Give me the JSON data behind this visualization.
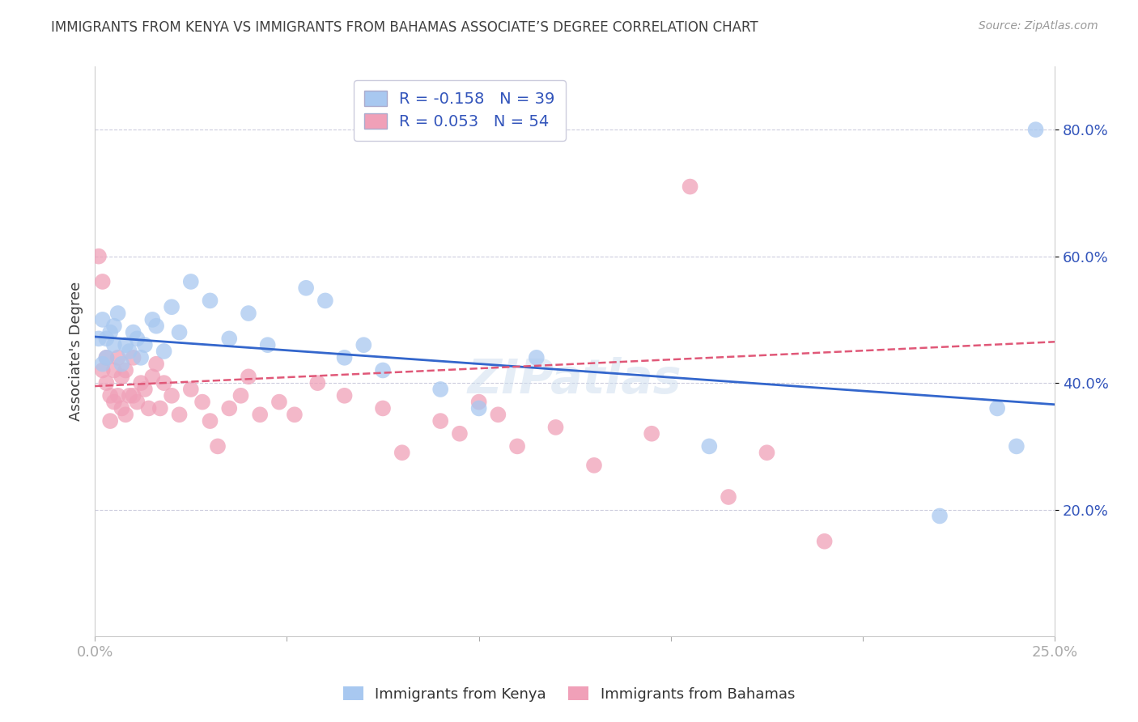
{
  "title": "IMMIGRANTS FROM KENYA VS IMMIGRANTS FROM BAHAMAS ASSOCIATE’S DEGREE CORRELATION CHART",
  "source": "Source: ZipAtlas.com",
  "ylabel": "Associate's Degree",
  "xlim": [
    0.0,
    0.25
  ],
  "ylim": [
    0.0,
    0.9
  ],
  "xticks": [
    0.0,
    0.05,
    0.1,
    0.15,
    0.2,
    0.25
  ],
  "xticklabels": [
    "0.0%",
    "",
    "",
    "",
    "",
    "25.0%"
  ],
  "yticks_right": [
    0.2,
    0.4,
    0.6,
    0.8
  ],
  "ytick_labels_right": [
    "20.0%",
    "40.0%",
    "60.0%",
    "80.0%"
  ],
  "kenya_R": -0.158,
  "kenya_N": 39,
  "bahamas_R": 0.053,
  "bahamas_N": 54,
  "kenya_color": "#A8C8F0",
  "bahamas_color": "#F0A0B8",
  "kenya_line_color": "#3366CC",
  "bahamas_line_color": "#E05878",
  "legend_label_kenya": "Immigrants from Kenya",
  "legend_label_bahamas": "Immigrants from Bahamas",
  "background_color": "#FFFFFF",
  "grid_color": "#CCCCDD",
  "title_color": "#404040",
  "source_color": "#999999",
  "kenya_x": [
    0.001,
    0.002,
    0.002,
    0.003,
    0.003,
    0.004,
    0.005,
    0.005,
    0.006,
    0.007,
    0.008,
    0.009,
    0.01,
    0.011,
    0.012,
    0.013,
    0.015,
    0.016,
    0.018,
    0.02,
    0.022,
    0.025,
    0.03,
    0.035,
    0.04,
    0.045,
    0.055,
    0.06,
    0.065,
    0.07,
    0.075,
    0.09,
    0.1,
    0.115,
    0.16,
    0.22,
    0.235,
    0.24,
    0.245
  ],
  "kenya_y": [
    0.47,
    0.5,
    0.43,
    0.47,
    0.44,
    0.48,
    0.46,
    0.49,
    0.51,
    0.43,
    0.46,
    0.45,
    0.48,
    0.47,
    0.44,
    0.46,
    0.5,
    0.49,
    0.45,
    0.52,
    0.48,
    0.56,
    0.53,
    0.47,
    0.51,
    0.46,
    0.55,
    0.53,
    0.44,
    0.46,
    0.42,
    0.39,
    0.36,
    0.44,
    0.3,
    0.19,
    0.36,
    0.3,
    0.8
  ],
  "bahamas_x": [
    0.001,
    0.002,
    0.002,
    0.003,
    0.003,
    0.004,
    0.004,
    0.005,
    0.005,
    0.006,
    0.006,
    0.007,
    0.007,
    0.008,
    0.008,
    0.009,
    0.01,
    0.01,
    0.011,
    0.012,
    0.013,
    0.014,
    0.015,
    0.016,
    0.017,
    0.018,
    0.02,
    0.022,
    0.025,
    0.028,
    0.03,
    0.032,
    0.035,
    0.038,
    0.04,
    0.043,
    0.048,
    0.052,
    0.058,
    0.065,
    0.075,
    0.08,
    0.09,
    0.095,
    0.1,
    0.105,
    0.11,
    0.12,
    0.13,
    0.145,
    0.155,
    0.165,
    0.175,
    0.19
  ],
  "bahamas_y": [
    0.6,
    0.42,
    0.56,
    0.44,
    0.4,
    0.38,
    0.34,
    0.42,
    0.37,
    0.44,
    0.38,
    0.36,
    0.41,
    0.42,
    0.35,
    0.38,
    0.44,
    0.38,
    0.37,
    0.4,
    0.39,
    0.36,
    0.41,
    0.43,
    0.36,
    0.4,
    0.38,
    0.35,
    0.39,
    0.37,
    0.34,
    0.3,
    0.36,
    0.38,
    0.41,
    0.35,
    0.37,
    0.35,
    0.4,
    0.38,
    0.36,
    0.29,
    0.34,
    0.32,
    0.37,
    0.35,
    0.3,
    0.33,
    0.27,
    0.32,
    0.71,
    0.22,
    0.29,
    0.15
  ],
  "kenya_trend_x": [
    0.0,
    0.25
  ],
  "kenya_trend_y": [
    0.473,
    0.366
  ],
  "bahamas_trend_x": [
    0.0,
    0.25
  ],
  "bahamas_trend_y": [
    0.395,
    0.465
  ]
}
